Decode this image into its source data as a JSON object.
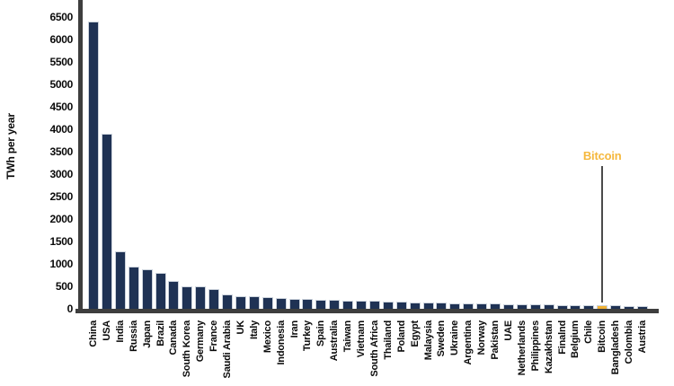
{
  "chart_data": {
    "type": "bar",
    "title": "",
    "xlabel": "",
    "ylabel": "TWh per year",
    "ylim": [
      0,
      6880
    ],
    "grid": false,
    "legend": null,
    "yticks": [
      0,
      500,
      1000,
      1500,
      2000,
      2500,
      3000,
      3500,
      4000,
      4500,
      5000,
      5500,
      6000,
      6500
    ],
    "categories": [
      "China",
      "USA",
      "India",
      "Russia",
      "Japan",
      "Brazil",
      "Canada",
      "South Korea",
      "Germany",
      "France",
      "Saudi Arabia",
      "UK",
      "Italy",
      "Mexico",
      "Indonesia",
      "Iran",
      "Turkey",
      "Spain",
      "Australia",
      "Taiwan",
      "Vietnam",
      "South Africa",
      "Thailand",
      "Poland",
      "Egypt",
      "Malaysia",
      "Sweden",
      "Ukraine",
      "Argentina",
      "Norway",
      "Pakistan",
      "UAE",
      "Netherlands",
      "Philippines",
      "Kazakhstan",
      "Finalnd",
      "Belgium",
      "Chile",
      "Bitcoin",
      "Bangladesh",
      "Colombia",
      "Austria"
    ],
    "values": [
      6400,
      3900,
      1270,
      930,
      870,
      790,
      620,
      500,
      490,
      440,
      310,
      285,
      270,
      255,
      240,
      225,
      210,
      205,
      190,
      185,
      175,
      170,
      160,
      150,
      145,
      140,
      132,
      128,
      122,
      118,
      112,
      108,
      105,
      95,
      92,
      86,
      82,
      78,
      74,
      70,
      68,
      65
    ],
    "highlight_category": "Bitcoin",
    "annotation": {
      "text": "Bitcoin",
      "target": "Bitcoin"
    },
    "colors": {
      "bar": "#1f3254",
      "bar_edge": "#ccd3dc",
      "highlight": "#f2b233",
      "highlight_label": "#f5b83d",
      "axis": "#3e3e3e",
      "annotation_line": "#4a4a4a",
      "text": "#0a0a0a",
      "background": "#ffffff"
    }
  }
}
